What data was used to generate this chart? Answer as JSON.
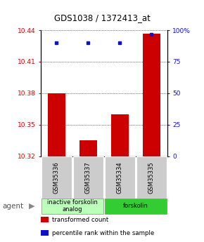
{
  "title": "GDS1038 / 1372413_at",
  "samples": [
    "GSM35336",
    "GSM35337",
    "GSM35334",
    "GSM35335"
  ],
  "transformed_counts": [
    10.38,
    10.335,
    10.36,
    10.437
  ],
  "percentile_ranks": [
    90,
    90,
    90,
    97
  ],
  "ylim": [
    10.32,
    10.44
  ],
  "yticks_left": [
    10.32,
    10.35,
    10.38,
    10.41,
    10.44
  ],
  "yticks_right": [
    0,
    25,
    50,
    75,
    100
  ],
  "ytick_right_labels": [
    "0",
    "25",
    "50",
    "75",
    "100%"
  ],
  "bar_color": "#cc0000",
  "dot_color": "#1111cc",
  "groups": [
    {
      "label": "inactive forskolin\nanalog",
      "samples": [
        0,
        1
      ],
      "color": "#bbffbb"
    },
    {
      "label": "forskolin",
      "samples": [
        2,
        3
      ],
      "color": "#33cc33"
    }
  ],
  "legend_items": [
    {
      "color": "#cc0000",
      "label": "transformed count"
    },
    {
      "color": "#1111cc",
      "label": "percentile rank within the sample"
    }
  ],
  "sample_box_color": "#cccccc",
  "plot_bg": "#ffffff"
}
